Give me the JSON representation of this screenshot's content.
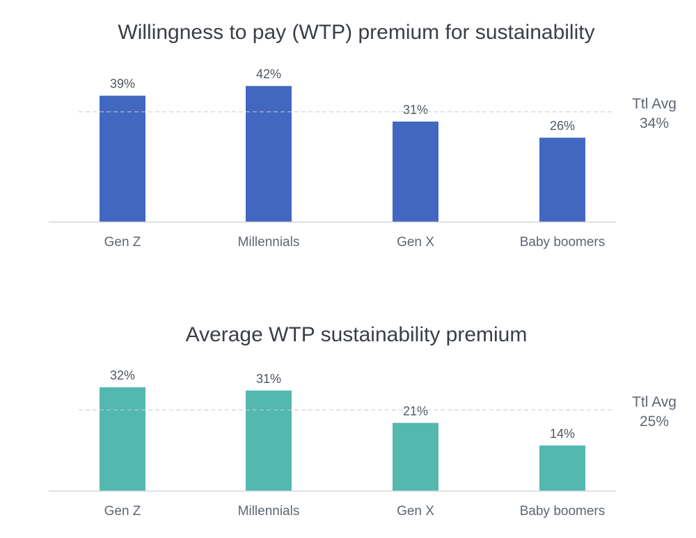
{
  "chart_data": [
    {
      "type": "bar",
      "title": "Willingness to pay (WTP) premium for sustainability",
      "categories": [
        "Gen Z",
        "Millennials",
        "Gen X",
        "Baby boomers"
      ],
      "values": [
        39,
        42,
        31,
        26
      ],
      "value_labels": [
        "39%",
        "42%",
        "31%",
        "26%"
      ],
      "reference_line": {
        "label": "Ttl Avg",
        "value": 34,
        "value_label": "34%"
      },
      "color": "#4267c0",
      "xlabel": "",
      "ylabel": "",
      "ylim": [
        0,
        45
      ],
      "grid": false
    },
    {
      "type": "bar",
      "title": "Average WTP sustainability premium",
      "categories": [
        "Gen Z",
        "Millennials",
        "Gen X",
        "Baby boomers"
      ],
      "values": [
        32,
        31,
        21,
        14
      ],
      "value_labels": [
        "32%",
        "31%",
        "21%",
        "14%"
      ],
      "reference_line": {
        "label": "Ttl Avg",
        "value": 25,
        "value_label": "25%"
      },
      "color": "#52b8b0",
      "xlabel": "",
      "ylabel": "",
      "ylim": [
        0,
        45
      ],
      "grid": false
    }
  ]
}
